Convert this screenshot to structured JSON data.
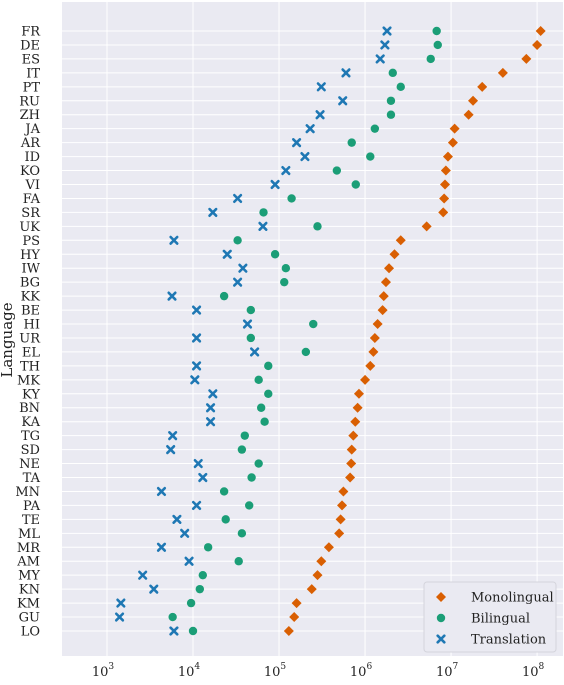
{
  "chart_data": {
    "type": "scatter",
    "title": "",
    "xlabel": "",
    "ylabel": "Language",
    "x_scale": "log",
    "xlim": [
      300,
      200000000
    ],
    "x_ticks": [
      {
        "value": 1000,
        "base": "10",
        "exp": "3"
      },
      {
        "value": 10000,
        "base": "10",
        "exp": "4"
      },
      {
        "value": 100000,
        "base": "10",
        "exp": "5"
      },
      {
        "value": 1000000,
        "base": "10",
        "exp": "6"
      },
      {
        "value": 10000000,
        "base": "10",
        "exp": "7"
      },
      {
        "value": 100000000,
        "base": "10",
        "exp": "8"
      }
    ],
    "grid": true,
    "legend_position": "bottom-right",
    "colors": {
      "background": "#eaeaf2",
      "grid": "#ffffff",
      "Monolingual": "#d95f02",
      "Bilingual": "#1b9e77",
      "Translation": "#1f78b4"
    },
    "categories": [
      "FR",
      "DE",
      "ES",
      "IT",
      "PT",
      "RU",
      "ZH",
      "JA",
      "AR",
      "ID",
      "KO",
      "VI",
      "FA",
      "SR",
      "UK",
      "PS",
      "HY",
      "IW",
      "BG",
      "KK",
      "BE",
      "HI",
      "UR",
      "EL",
      "TH",
      "MK",
      "KY",
      "BN",
      "KA",
      "TG",
      "SD",
      "NE",
      "TA",
      "MN",
      "PA",
      "TE",
      "ML",
      "MR",
      "AM",
      "MY",
      "KN",
      "KM",
      "GU",
      "LO"
    ],
    "series": [
      {
        "name": "Monolingual",
        "marker": "diamond",
        "values": [
          110000000,
          100000000,
          75000000,
          40000000,
          23000000,
          18000000,
          16000000,
          11000000,
          10500000,
          9200000,
          8700000,
          8500000,
          8300000,
          8100000,
          5200000,
          2600000,
          2200000,
          1900000,
          1750000,
          1650000,
          1600000,
          1400000,
          1300000,
          1250000,
          1150000,
          1000000,
          850000,
          820000,
          770000,
          730000,
          700000,
          690000,
          670000,
          560000,
          540000,
          520000,
          500000,
          380000,
          310000,
          280000,
          240000,
          160000,
          150000,
          130000
        ]
      },
      {
        "name": "Bilingual",
        "marker": "circle",
        "values": [
          6800000,
          7000000,
          5800000,
          2100000,
          2600000,
          2000000,
          2000000,
          1300000,
          700000,
          1150000,
          470000,
          780000,
          140000,
          66000,
          280000,
          33000,
          90000,
          120000,
          115000,
          23000,
          47000,
          250000,
          47000,
          205000,
          75000,
          58000,
          75000,
          62000,
          68000,
          40000,
          37000,
          58000,
          48000,
          23000,
          45000,
          24000,
          37000,
          15000,
          34000,
          13000,
          12000,
          9500,
          5800,
          10000
        ]
      },
      {
        "name": "Translation",
        "marker": "x",
        "values": [
          1800000,
          1700000,
          1500000,
          600000,
          310000,
          550000,
          300000,
          230000,
          160000,
          200000,
          120000,
          90000,
          33000,
          17000,
          65000,
          6000,
          25000,
          38000,
          33000,
          5700,
          11000,
          43000,
          11000,
          52000,
          11000,
          10500,
          17000,
          16000,
          16000,
          5800,
          5500,
          11500,
          13000,
          4300,
          11000,
          6500,
          8000,
          4300,
          9000,
          2600,
          3500,
          1450,
          1400,
          6000
        ]
      }
    ]
  }
}
